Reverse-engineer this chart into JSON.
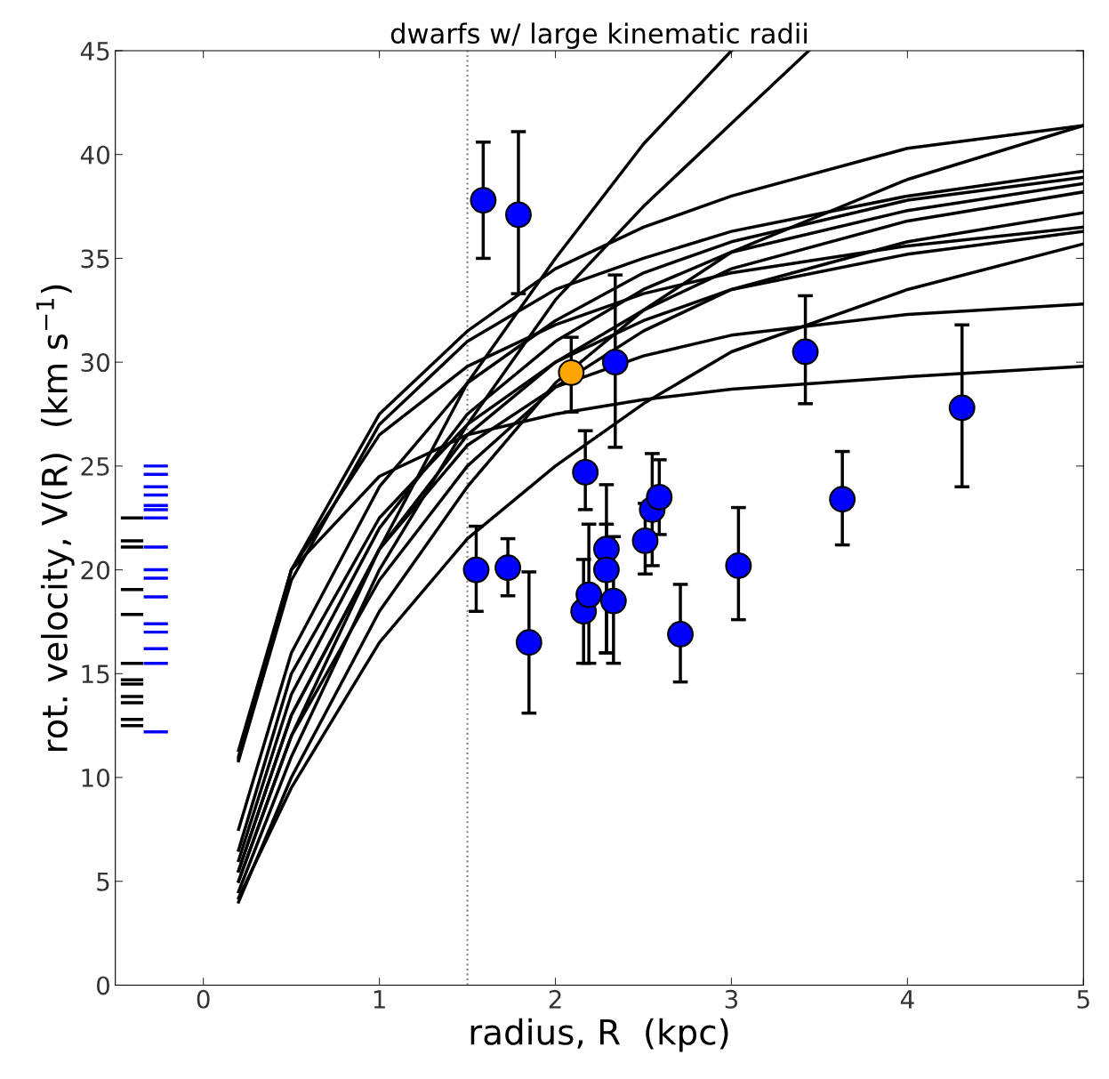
{
  "chart_data": {
    "type": "line",
    "title": "dwarfs w/ large kinematic radii",
    "xlabel": "radius, R  (kpc)",
    "ylabel": "rot. velocity, V(R)  (km s$^{−1}$)",
    "xlim": [
      -0.5,
      5
    ],
    "xticks": [
      0,
      1,
      2,
      3,
      4,
      5
    ],
    "ylim": [
      0,
      45
    ],
    "yticks": [
      0,
      5,
      10,
      15,
      20,
      25,
      30,
      35,
      40,
      45
    ],
    "grid": false,
    "legend": false,
    "line_style": "solid",
    "marker": "none",
    "ref_lines": [
      {
        "axis": "x",
        "value": 1.5,
        "color": "#808080",
        "line_style": "dotted"
      }
    ],
    "series": [
      {
        "color": "#000000",
        "x": [
          0.2,
          0.5,
          1,
          1.5,
          2,
          2.5,
          3
        ],
        "values": [
          5,
          12,
          21,
          29,
          35,
          40.5,
          45
        ]
      },
      {
        "type": "line",
        "color": "#000000",
        "x": [
          0.2,
          0.5,
          1,
          1.5,
          2,
          2.5,
          3,
          3.44
        ],
        "values": [
          4.5,
          11,
          20,
          27,
          33,
          37.5,
          41.5,
          45
        ]
      },
      {
        "type": "line",
        "color": "#000000",
        "x": [
          0.2,
          0.5,
          1,
          1.5,
          2,
          2.5,
          3,
          4,
          5
        ],
        "values": [
          11,
          20,
          27.5,
          31.5,
          34.5,
          36.5,
          38,
          40.3,
          41.4
        ]
      },
      {
        "type": "line",
        "color": "#000000",
        "x": [
          0.2,
          0.5,
          1,
          1.5,
          2,
          2.5,
          3,
          4,
          5
        ],
        "values": [
          4,
          10,
          18,
          24,
          29,
          32.5,
          35.3,
          38.8,
          41.4
        ]
      },
      {
        "type": "line",
        "color": "#000000",
        "x": [
          0.2,
          0.5,
          1,
          1.5,
          2,
          2.5,
          3,
          4,
          5
        ],
        "values": [
          10.8,
          19.5,
          27,
          31,
          33.5,
          35,
          36.3,
          38,
          39.2
        ]
      },
      {
        "type": "line",
        "color": "#000000",
        "x": [
          0.2,
          0.5,
          1,
          1.5,
          2,
          2.5,
          3,
          4,
          5
        ],
        "values": [
          7.5,
          16,
          24,
          29,
          32,
          34.3,
          35.8,
          37.8,
          38.9
        ]
      },
      {
        "type": "line",
        "color": "#000000",
        "x": [
          0.2,
          0.5,
          1,
          1.5,
          2,
          2.5,
          3,
          4,
          5
        ],
        "values": [
          6,
          14,
          22,
          27.5,
          31,
          33.5,
          35.3,
          37.3,
          38.6
        ]
      },
      {
        "type": "line",
        "color": "#000000",
        "x": [
          0.2,
          0.5,
          1,
          1.5,
          2,
          2.5,
          3,
          4,
          5
        ],
        "values": [
          5.5,
          13,
          21,
          26.5,
          30,
          32.5,
          34.5,
          36.8,
          38.2
        ]
      },
      {
        "type": "line",
        "color": "#000000",
        "x": [
          0.2,
          0.5,
          1,
          1.5,
          2,
          2.5,
          3,
          4,
          5
        ],
        "values": [
          5,
          12,
          19.5,
          25,
          28.8,
          31.5,
          33.5,
          35.8,
          37.2
        ]
      },
      {
        "type": "line",
        "color": "#000000",
        "x": [
          0.2,
          0.5,
          1,
          1.5,
          2,
          2.5,
          3,
          4,
          5
        ],
        "values": [
          11.3,
          20,
          26.5,
          29.8,
          31.8,
          33.3,
          34.3,
          35.6,
          36.5
        ]
      },
      {
        "type": "line",
        "color": "#000000",
        "x": [
          0.2,
          0.5,
          1,
          1.5,
          2,
          2.5,
          3,
          4,
          5
        ],
        "values": [
          6.5,
          15,
          22.5,
          27,
          30,
          32,
          33.5,
          35.2,
          36.3
        ]
      },
      {
        "type": "line",
        "color": "#000000",
        "x": [
          0.2,
          0.5,
          1,
          1.5,
          2,
          2.5,
          3,
          4,
          5
        ],
        "values": [
          4.2,
          9.5,
          16.5,
          21.5,
          25,
          28,
          30.5,
          33.5,
          35.7
        ]
      },
      {
        "type": "line",
        "color": "#000000",
        "x": [
          0.2,
          0.5,
          1,
          1.5,
          2,
          2.5,
          3,
          4,
          5
        ],
        "values": [
          5.5,
          13,
          21,
          26,
          28.8,
          30.3,
          31.3,
          32.3,
          32.8
        ]
      },
      {
        "type": "line",
        "color": "#000000",
        "x": [
          0.2,
          0.5,
          1,
          1.5,
          2,
          2.5,
          3,
          4,
          5
        ],
        "values": [
          10.9,
          20,
          24.5,
          26.5,
          27.5,
          28.2,
          28.7,
          29.3,
          29.8
        ]
      },
      {
        "type": "scatter",
        "marker": "circle",
        "color": "#0000ff",
        "x": [
          1.59,
          1.79,
          2.34,
          3.42,
          4.31,
          2.17,
          3.63,
          1.55,
          1.73,
          1.85,
          2.16,
          2.19,
          2.29,
          2.29,
          2.33,
          2.51,
          2.55,
          2.59,
          2.71,
          3.04
        ],
        "values": [
          37.8,
          37.1,
          30.0,
          30.5,
          27.8,
          24.7,
          23.4,
          20.0,
          20.1,
          16.5,
          18.0,
          18.8,
          21.0,
          20.0,
          18.5,
          21.4,
          22.9,
          23.5,
          16.9,
          20.2
        ],
        "errors": [
          [
            35.0,
            40.6
          ],
          [
            33.3,
            41.1
          ],
          [
            25.9,
            34.2
          ],
          [
            28.0,
            33.2
          ],
          [
            24.0,
            31.8
          ],
          [
            22.9,
            26.7
          ],
          [
            21.2,
            25.7
          ],
          [
            18.0,
            22.1
          ],
          [
            18.75,
            21.5
          ],
          [
            13.1,
            19.9
          ],
          [
            15.5,
            20.5
          ],
          [
            15.5,
            22.2
          ],
          [
            16.0,
            24.1
          ],
          [
            16.0,
            22.2
          ],
          [
            15.5,
            21.6
          ],
          [
            19.8,
            23.2
          ],
          [
            20.2,
            25.6
          ],
          [
            21.7,
            25.3
          ],
          [
            14.6,
            19.3
          ],
          [
            17.6,
            23.0
          ]
        ]
      },
      {
        "type": "scatter",
        "marker": "circle",
        "color": "#ffa500",
        "x": [
          2.09
        ],
        "values": [
          29.5
        ],
        "errors": [
          [
            27.6,
            31.2
          ]
        ]
      },
      {
        "color": "#000000",
        "x": [
          -0.46,
          -0.35
        ],
        "values": [
          22.5,
          22.5
        ]
      },
      {
        "color": "#000000",
        "x": [
          -0.46,
          -0.35
        ],
        "values": [
          21.4,
          21.4
        ]
      },
      {
        "color": "#000000",
        "x": [
          -0.46,
          -0.35
        ],
        "values": [
          21.1,
          21.1
        ]
      },
      {
        "color": "#000000",
        "x": [
          -0.46,
          -0.35
        ],
        "values": [
          19.05,
          19.05
        ]
      },
      {
        "color": "#000000",
        "x": [
          -0.46,
          -0.35
        ],
        "values": [
          17.85,
          17.85
        ]
      },
      {
        "color": "#000000",
        "x": [
          -0.46,
          -0.35
        ],
        "values": [
          15.5,
          15.5
        ]
      },
      {
        "color": "#000000",
        "x": [
          -0.46,
          -0.35
        ],
        "values": [
          14.7,
          14.7
        ]
      },
      {
        "color": "#000000",
        "x": [
          -0.46,
          -0.35
        ],
        "values": [
          14.5,
          14.5
        ]
      },
      {
        "color": "#000000",
        "x": [
          -0.46,
          -0.35
        ],
        "values": [
          13.9,
          13.9
        ]
      },
      {
        "color": "#000000",
        "x": [
          -0.46,
          -0.35
        ],
        "values": [
          13.6,
          13.6
        ]
      },
      {
        "color": "#000000",
        "x": [
          -0.46,
          -0.35
        ],
        "values": [
          12.8,
          12.8
        ]
      },
      {
        "color": "#000000",
        "x": [
          -0.46,
          -0.35
        ],
        "values": [
          12.5,
          12.5
        ]
      },
      {
        "color": "#0000ff",
        "x": [
          -0.33,
          -0.21
        ],
        "values": [
          25.0,
          25.0
        ]
      },
      {
        "color": "#0000ff",
        "x": [
          -0.33,
          -0.21
        ],
        "values": [
          24.6,
          24.6
        ]
      },
      {
        "color": "#0000ff",
        "x": [
          -0.33,
          -0.21
        ],
        "values": [
          24.0,
          24.0
        ]
      },
      {
        "color": "#0000ff",
        "x": [
          -0.33,
          -0.21
        ],
        "values": [
          23.6,
          23.6
        ]
      },
      {
        "color": "#0000ff",
        "x": [
          -0.33,
          -0.21
        ],
        "values": [
          23.1,
          23.1
        ]
      },
      {
        "color": "#0000ff",
        "x": [
          -0.33,
          -0.21
        ],
        "values": [
          22.9,
          22.9
        ]
      },
      {
        "color": "#0000ff",
        "x": [
          -0.33,
          -0.21
        ],
        "values": [
          22.5,
          22.5
        ]
      },
      {
        "color": "#0000ff",
        "x": [
          -0.33,
          -0.21
        ],
        "values": [
          21.1,
          21.1
        ]
      },
      {
        "color": "#0000ff",
        "x": [
          -0.33,
          -0.21
        ],
        "values": [
          20.0,
          20.0
        ]
      },
      {
        "color": "#0000ff",
        "x": [
          -0.33,
          -0.21
        ],
        "values": [
          19.6,
          19.6
        ]
      },
      {
        "color": "#0000ff",
        "x": [
          -0.33,
          -0.21
        ],
        "values": [
          18.7,
          18.7
        ]
      },
      {
        "color": "#0000ff",
        "x": [
          -0.33,
          -0.21
        ],
        "values": [
          17.4,
          17.4
        ]
      },
      {
        "color": "#0000ff",
        "x": [
          -0.33,
          -0.21
        ],
        "values": [
          17.0,
          17.0
        ]
      },
      {
        "color": "#0000ff",
        "x": [
          -0.33,
          -0.21
        ],
        "values": [
          16.2,
          16.2
        ]
      },
      {
        "color": "#0000ff",
        "x": [
          -0.33,
          -0.21
        ],
        "values": [
          15.5,
          15.5
        ]
      },
      {
        "color": "#0000ff",
        "x": [
          -0.33,
          -0.21
        ],
        "values": [
          12.2,
          12.2
        ]
      }
    ]
  }
}
